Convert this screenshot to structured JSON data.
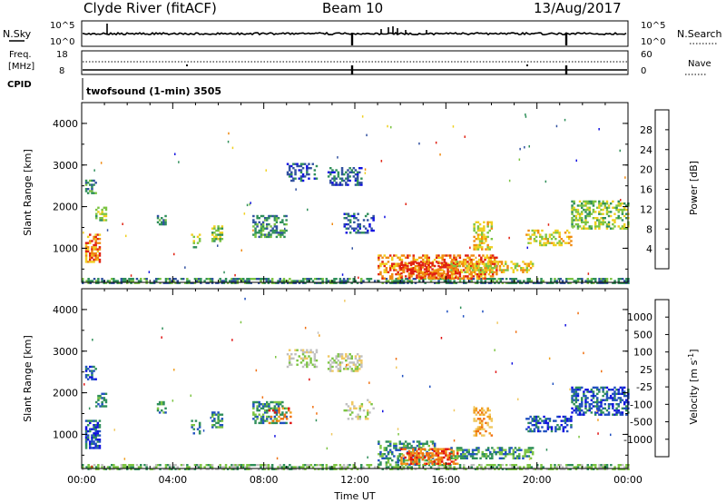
{
  "header": {
    "station": "Clyde River (fitACF)",
    "beam": "Beam 10",
    "date": "13/Aug/2017"
  },
  "noise_panel": {
    "left_label": "N.Sky",
    "left_ticks": [
      "10^5",
      "10^0"
    ],
    "right_label": "N.Search",
    "right_ticks": [
      "10^5",
      "10^0"
    ]
  },
  "freq_panel": {
    "left_label_1": "Freq.",
    "left_label_2": "[MHz]",
    "left_ticks": [
      "18",
      "8"
    ],
    "right_label": "Nave",
    "right_ticks": [
      "60",
      "0"
    ]
  },
  "cpid": {
    "label": "CPID",
    "mode": "twofsound (1-min) 3505"
  },
  "chart_data": [
    {
      "type": "heatmap",
      "title": "",
      "xlabel": "",
      "ylabel": "Slant Range [km]",
      "colorbar_label": "Power [dB]",
      "colorbar_ticks": [
        "4",
        "8",
        "12",
        "16",
        "20",
        "24",
        "28"
      ],
      "yticks": [
        "1000",
        "2000",
        "3000",
        "4000"
      ],
      "ylim": [
        180,
        4500
      ],
      "xlim": [
        0,
        24
      ],
      "colors": [
        "#1010e0",
        "#3050a0",
        "#2f8f5a",
        "#7cc443",
        "#f0d020",
        "#f08a10",
        "#e02010"
      ],
      "regions": [
        {
          "t0": 0.0,
          "t1": 24.0,
          "r0": 190,
          "r1": 300,
          "level": 2,
          "density": 0.55
        },
        {
          "t0": 0.15,
          "t1": 0.6,
          "r0": 2350,
          "r1": 2700,
          "level": 2,
          "density": 0.45
        },
        {
          "t0": 0.15,
          "t1": 0.75,
          "r0": 700,
          "r1": 1400,
          "level": 5,
          "density": 0.55
        },
        {
          "t0": 0.6,
          "t1": 1.1,
          "r0": 1700,
          "r1": 2050,
          "level": 3,
          "density": 0.45
        },
        {
          "t0": 3.3,
          "t1": 3.7,
          "r0": 1550,
          "r1": 1850,
          "level": 2,
          "density": 0.45
        },
        {
          "t0": 4.8,
          "t1": 5.2,
          "r0": 1050,
          "r1": 1400,
          "level": 3,
          "density": 0.5
        },
        {
          "t0": 5.7,
          "t1": 6.2,
          "r0": 1200,
          "r1": 1600,
          "level": 3,
          "density": 0.5
        },
        {
          "t0": 7.5,
          "t1": 9.0,
          "r0": 1300,
          "r1": 1850,
          "level": 2,
          "density": 0.5
        },
        {
          "t0": 9.0,
          "t1": 10.3,
          "r0": 2650,
          "r1": 3100,
          "level": 1,
          "density": 0.45
        },
        {
          "t0": 10.8,
          "t1": 12.3,
          "r0": 2550,
          "r1": 3000,
          "level": 1,
          "density": 0.45
        },
        {
          "t0": 11.5,
          "t1": 12.8,
          "r0": 1400,
          "r1": 1900,
          "level": 1,
          "density": 0.3
        },
        {
          "t0": 13.0,
          "t1": 18.2,
          "r0": 300,
          "r1": 900,
          "level": 5,
          "density": 0.5
        },
        {
          "t0": 14.0,
          "t1": 16.5,
          "r0": 320,
          "r1": 700,
          "level": 6,
          "density": 0.55
        },
        {
          "t0": 16.2,
          "t1": 19.8,
          "r0": 450,
          "r1": 750,
          "level": 4,
          "density": 0.5
        },
        {
          "t0": 17.2,
          "t1": 18.0,
          "r0": 1000,
          "r1": 1700,
          "level": 4,
          "density": 0.4
        },
        {
          "t0": 19.5,
          "t1": 21.5,
          "r0": 1100,
          "r1": 1500,
          "level": 4,
          "density": 0.4
        },
        {
          "t0": 21.5,
          "t1": 24.0,
          "r0": 1500,
          "r1": 2200,
          "level": 3,
          "density": 0.5
        }
      ]
    },
    {
      "type": "heatmap",
      "title": "",
      "xlabel": "Time UT",
      "ylabel": "Slant Range [km]",
      "colorbar_label": "Velocity [m s^-1]",
      "colorbar_ticks": [
        "-1000",
        "-500",
        "-100",
        "-25",
        "25",
        "100",
        "500",
        "1000"
      ],
      "yticks": [
        "1000",
        "2000",
        "3000",
        "4000"
      ],
      "xticks": [
        "00:00",
        "04:00",
        "08:00",
        "12:00",
        "16:00",
        "20:00",
        "00:00"
      ],
      "ylim": [
        180,
        4500
      ],
      "xlim": [
        0,
        24
      ],
      "colors": [
        "#e01010",
        "#f07010",
        "#f0a020",
        "#f0c860",
        "#c0c0c0",
        "#7cc443",
        "#2f8f5a",
        "#2050c0",
        "#1010e0"
      ],
      "regions": [
        {
          "t0": 0.0,
          "t1": 24.0,
          "r0": 190,
          "r1": 300,
          "level": 5,
          "density": 0.55
        },
        {
          "t0": 0.15,
          "t1": 0.6,
          "r0": 2350,
          "r1": 2700,
          "level": 7,
          "density": 0.45
        },
        {
          "t0": 0.15,
          "t1": 0.75,
          "r0": 700,
          "r1": 1400,
          "level": 7,
          "density": 0.6
        },
        {
          "t0": 0.6,
          "t1": 1.1,
          "r0": 1700,
          "r1": 2050,
          "level": 6,
          "density": 0.45
        },
        {
          "t0": 3.3,
          "t1": 3.7,
          "r0": 1550,
          "r1": 1850,
          "level": 6,
          "density": 0.45
        },
        {
          "t0": 4.8,
          "t1": 5.2,
          "r0": 1050,
          "r1": 1400,
          "level": 6,
          "density": 0.5
        },
        {
          "t0": 5.7,
          "t1": 6.2,
          "r0": 1200,
          "r1": 1600,
          "level": 6,
          "density": 0.5
        },
        {
          "t0": 7.5,
          "t1": 9.0,
          "r0": 1300,
          "r1": 1850,
          "level": 6,
          "density": 0.5
        },
        {
          "t0": 8.2,
          "t1": 9.2,
          "r0": 1300,
          "r1": 1700,
          "level": 1,
          "density": 0.25
        },
        {
          "t0": 9.0,
          "t1": 10.3,
          "r0": 2650,
          "r1": 3100,
          "level": 4,
          "density": 0.45
        },
        {
          "t0": 10.8,
          "t1": 12.3,
          "r0": 2550,
          "r1": 3000,
          "level": 4,
          "density": 0.45
        },
        {
          "t0": 11.5,
          "t1": 12.8,
          "r0": 1400,
          "r1": 1900,
          "level": 4,
          "density": 0.3
        },
        {
          "t0": 13.0,
          "t1": 15.5,
          "r0": 300,
          "r1": 900,
          "level": 6,
          "density": 0.45
        },
        {
          "t0": 14.0,
          "t1": 16.5,
          "r0": 320,
          "r1": 700,
          "level": 1,
          "density": 0.55
        },
        {
          "t0": 16.2,
          "t1": 19.8,
          "r0": 450,
          "r1": 750,
          "level": 6,
          "density": 0.55
        },
        {
          "t0": 17.2,
          "t1": 18.0,
          "r0": 1000,
          "r1": 1700,
          "level": 2,
          "density": 0.4
        },
        {
          "t0": 19.5,
          "t1": 21.5,
          "r0": 1100,
          "r1": 1500,
          "level": 7,
          "density": 0.45
        },
        {
          "t0": 21.5,
          "t1": 24.0,
          "r0": 1500,
          "r1": 2200,
          "level": 7,
          "density": 0.5
        }
      ]
    }
  ]
}
